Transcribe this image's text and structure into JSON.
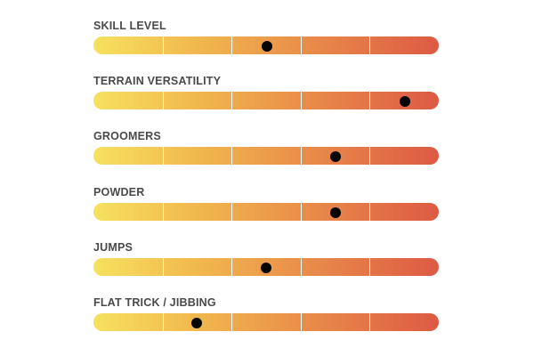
{
  "ratings": [
    {
      "label": "SKILL LEVEL",
      "value": 0.502
    },
    {
      "label": "TERRAIN VERSATILITY",
      "value": 0.902
    },
    {
      "label": "GROOMERS",
      "value": 0.7
    },
    {
      "label": "POWDER",
      "value": 0.7
    },
    {
      "label": "JUMPS",
      "value": 0.5
    },
    {
      "label": "FLAT TRICK / JIBBING",
      "value": 0.3
    }
  ],
  "scale_segments": 5,
  "colors": {
    "gradient_start": "#f7e15e",
    "gradient_mid": "#f0b14c",
    "gradient_end": "#dd5a44",
    "marker": "#050505",
    "label": "#4a4a4a"
  }
}
